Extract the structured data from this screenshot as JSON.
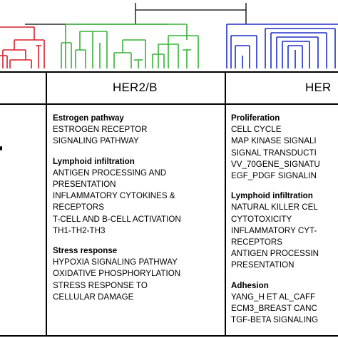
{
  "columns": [
    {
      "header": "HER2/B",
      "sections": [
        {
          "title": "Estrogen pathway",
          "items": [
            "ESTROGEN RECEPTOR",
            "SIGNALING PATHWAY"
          ]
        },
        {
          "title": "Lymphoid  infiltration",
          "items": [
            "ANTIGEN PROCESSING AND",
            "PRESENTATION",
            "INFLAMMATORY CYTOKINES &",
            "RECEPTORS",
            "T-CELL AND B-CELL ACTIVATION",
            "TH1-TH2-TH3"
          ]
        },
        {
          "title": "Stress response",
          "items": [
            "HYPOXIA SIGNALING PATHWAY",
            "OXIDATIVE PHOSPHORYLATION",
            "STRESS RESPONSE TO",
            "CELLULAR DAMAGE"
          ]
        }
      ]
    },
    {
      "header": "HER",
      "sections": [
        {
          "title": "Proliferation",
          "items": [
            "CELL CYCLE",
            "MAP KINASE SIGNALI",
            "SIGNAL TRANSDUCTI",
            "VV_70GENE_SIGNATU",
            "EGF_PDGF SIGNALIN"
          ]
        },
        {
          "title": "Lymphoid  infiltration",
          "items": [
            "NATURAL KILLER CEL",
            "CYTOTOXICITY",
            "INFLAMMATORY CYT-",
            "RECEPTORS",
            "ANTIGEN PROCESSIN",
            "PRESENTATION"
          ]
        },
        {
          "title": "Adhesion",
          "items": [
            "YANG_H ET AL_CAFF",
            "ECM3_BREAST CANC",
            "TGF-BETA SIGNALING"
          ]
        }
      ]
    }
  ],
  "dendrogram_colors": {
    "left": "#d81e2a",
    "middle": "#35b335",
    "right": "#1e2fc8"
  }
}
